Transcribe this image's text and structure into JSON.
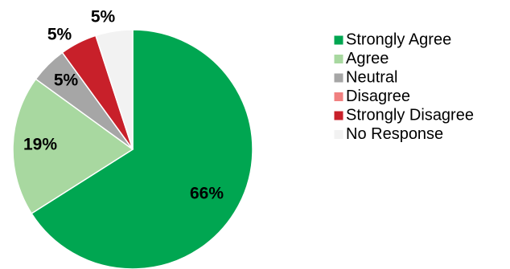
{
  "chart_data": {
    "type": "pie",
    "title": "",
    "categories": [
      "Strongly Agree",
      "Agree",
      "Neutral",
      "Disagree",
      "Strongly Disagree",
      "No Response"
    ],
    "values": [
      66,
      19,
      5,
      0,
      5,
      5
    ],
    "data_labels": [
      "66%",
      "19%",
      "5%",
      "",
      "5%",
      "5%"
    ],
    "colors": [
      "#00A651",
      "#A8D8A0",
      "#A6A6A6",
      "#F08080",
      "#C8202A",
      "#F2F2F2"
    ],
    "start_angle": "12 o'clock",
    "direction": "clockwise",
    "legend": {
      "position": "right",
      "entries": [
        "Strongly Agree",
        "Agree",
        "Neutral",
        "Disagree",
        "Strongly Disagree",
        "No Response"
      ]
    }
  }
}
